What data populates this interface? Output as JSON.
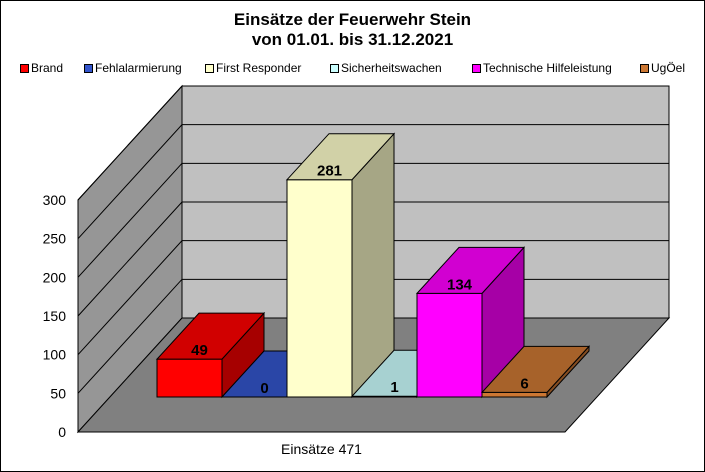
{
  "chart_data": {
    "type": "bar",
    "title_line1": "Einsätze der Feuerwehr Stein",
    "title_line2": "von 01.01. bis 31.12.2021",
    "category_label": "Einsätze 471",
    "ylim": [
      0,
      300
    ],
    "y_ticks": [
      "0",
      "50",
      "100",
      "150",
      "200",
      "250",
      "300"
    ],
    "grid": true,
    "legend_position": "top",
    "series": [
      {
        "name": "Brand",
        "value": 49,
        "color": "#ff0000"
      },
      {
        "name": "Fehlalarmierung",
        "value": 0,
        "color": "#3355cc"
      },
      {
        "name": "First Responder",
        "value": 281,
        "color": "#ffffcc"
      },
      {
        "name": "Sicherheitswachen",
        "value": 1,
        "color": "#ccffff"
      },
      {
        "name": "Technische Hilfeleistung",
        "value": 134,
        "color": "#ff00ff"
      },
      {
        "name": "UgÖel",
        "value": 6,
        "color": "#cc7733"
      }
    ]
  }
}
